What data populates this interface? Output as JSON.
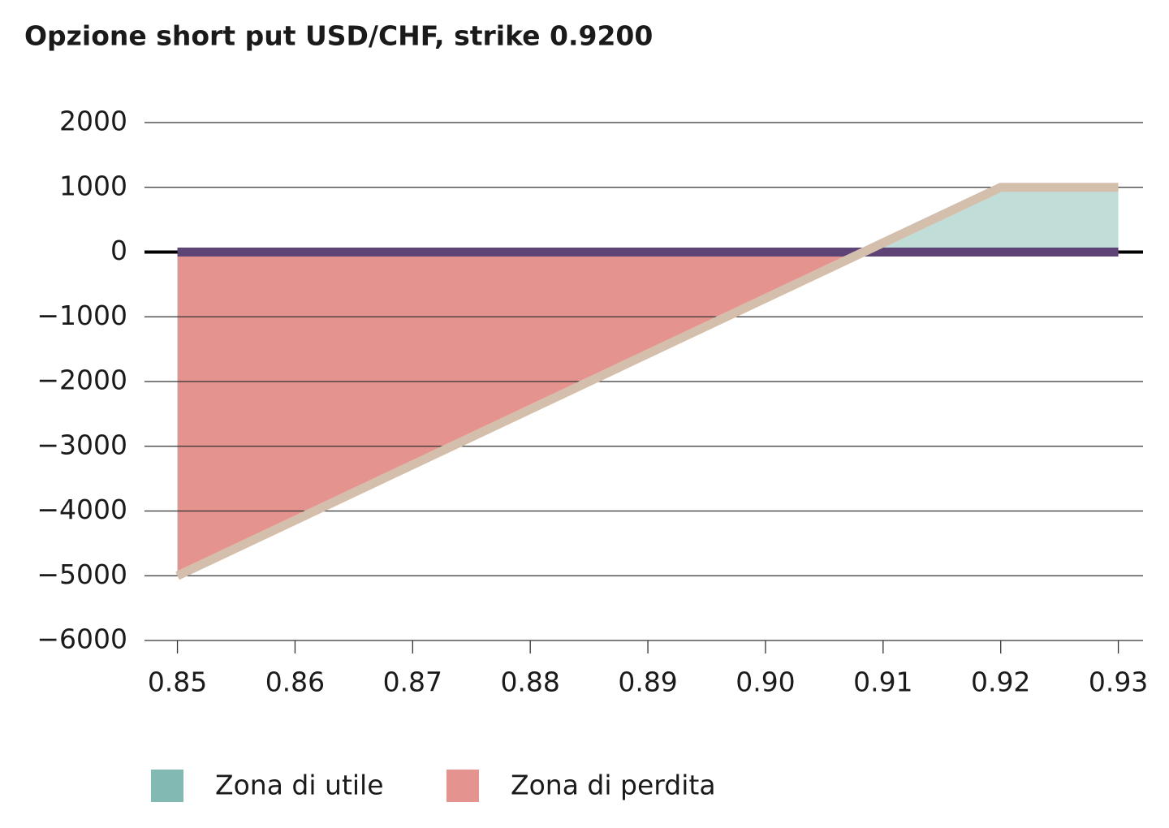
{
  "chart_data": {
    "type": "line",
    "title": "Opzione short put USD/CHF, strike 0.9200",
    "series": [
      {
        "x": [
          0.85,
          0.93
        ],
        "values": [
          0,
          0
        ],
        "color": "#5e4476"
      },
      {
        "x": [
          0.85,
          0.92,
          0.93
        ],
        "values": [
          -5000,
          1000,
          1000
        ],
        "color": "#d4bfad"
      }
    ],
    "areas": [
      {
        "name": "Zona di utile",
        "color": "#83b9b3",
        "fill": "#c0ddd7"
      },
      {
        "name": "Zona di perdita",
        "color": "#e4938e",
        "fill": "#e4938e"
      }
    ],
    "xlim": [
      0.8472,
      0.9321
    ],
    "xticks": [
      0.85,
      0.86,
      0.87,
      0.88,
      0.89,
      {
        "value": 0.9,
        "label": "0.90"
      },
      0.91,
      0.92,
      0.93
    ],
    "ylim": [
      -6000,
      2000
    ],
    "yticks": [
      {
        "value": -6000,
        "label": "−6000"
      },
      {
        "value": -5000,
        "label": "−5000"
      },
      {
        "value": -4000,
        "label": "−4000"
      },
      {
        "value": -3000,
        "label": "−3000"
      },
      {
        "value": -2000,
        "label": "−2000"
      },
      {
        "value": -1000,
        "label": "−1000"
      },
      0,
      1000,
      2000
    ],
    "grid": true
  }
}
